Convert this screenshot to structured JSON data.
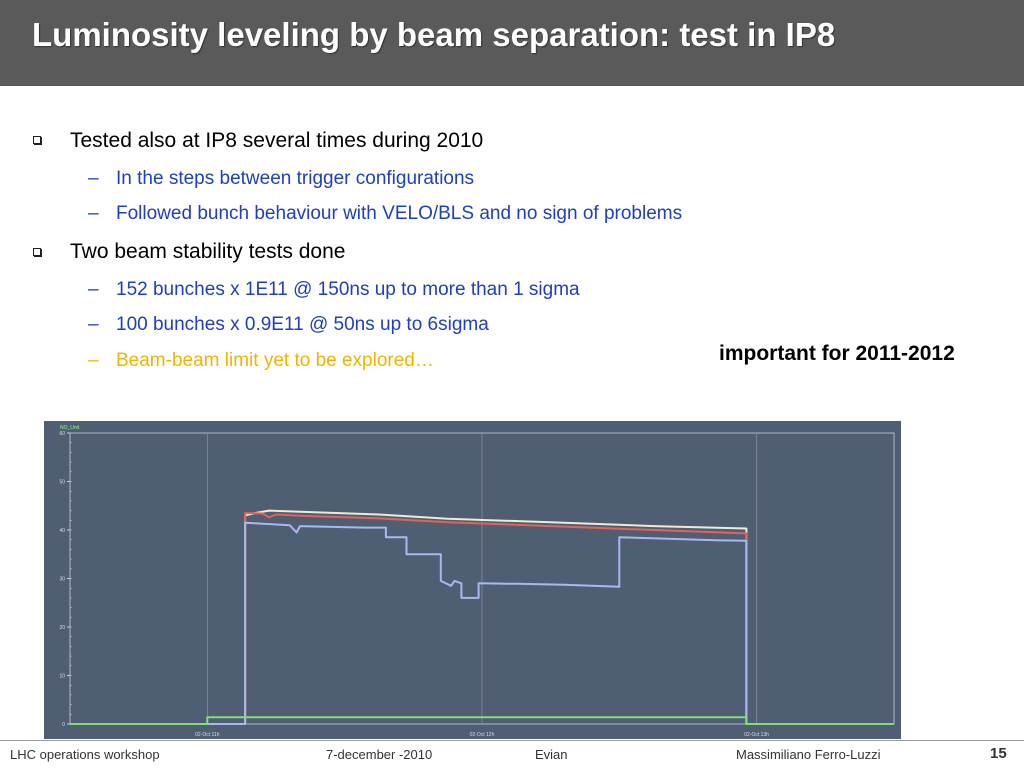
{
  "slide": {
    "title": "Luminosity leveling by beam separation: test in IP8",
    "bullets": [
      {
        "text": "Tested also at IP8 several times during 2010",
        "subs": [
          {
            "text": "In the steps between trigger configurations",
            "color": "#1f3fbf"
          },
          {
            "text": "Followed bunch behaviour with VELO/BLS and no sign of problems",
            "color": "#1f3fbf"
          }
        ]
      },
      {
        "text": "Two beam stability tests done",
        "subs": [
          {
            "text": "152 bunches x 1E11 @ 150ns up to more than 1 sigma",
            "color": "#1f3fbf"
          },
          {
            "text": "100 bunches x 0.9E11 @ 50ns up to 6sigma",
            "color": "#1f3fbf"
          },
          {
            "text": "Beam-beam limit yet to be explored…",
            "color": "#f2b400"
          }
        ]
      }
    ],
    "note": "important for 2011-2012",
    "dash": "–"
  },
  "chart_data": {
    "type": "line",
    "unit_label": "NO_Unit",
    "ylim": [
      0,
      60
    ],
    "yticks": [
      "0",
      "10",
      "20",
      "30",
      "40",
      "50",
      "60"
    ],
    "xticks": [
      "02-Oct 11h",
      "02-Oct 12h",
      "02-Oct 13h"
    ],
    "grid": true,
    "background": "#4f5e72",
    "series": [
      {
        "color": "#f0ead2",
        "points": [
          [
            0.0,
            0
          ],
          [
            0.255,
            0
          ],
          [
            0.255,
            43
          ],
          [
            0.27,
            43.5
          ],
          [
            0.29,
            44
          ],
          [
            0.33,
            43.8
          ],
          [
            0.45,
            43.2
          ],
          [
            0.55,
            42.3
          ],
          [
            0.7,
            41.6
          ],
          [
            0.85,
            40.8
          ],
          [
            0.985,
            40.3
          ],
          [
            0.985,
            0
          ],
          [
            1.2,
            0
          ]
        ]
      },
      {
        "color": "#e0645a",
        "points": [
          [
            0.0,
            0
          ],
          [
            0.255,
            0
          ],
          [
            0.255,
            43.5
          ],
          [
            0.28,
            43.4
          ],
          [
            0.29,
            42.6
          ],
          [
            0.3,
            43.2
          ],
          [
            0.34,
            42.9
          ],
          [
            0.45,
            42.4
          ],
          [
            0.55,
            41.6
          ],
          [
            0.7,
            40.8
          ],
          [
            0.85,
            40.0
          ],
          [
            0.985,
            39.3
          ],
          [
            0.985,
            0
          ],
          [
            1.2,
            0
          ]
        ]
      },
      {
        "color": "#a9b8ee",
        "points": [
          [
            0.0,
            0
          ],
          [
            0.255,
            0
          ],
          [
            0.255,
            41.5
          ],
          [
            0.32,
            41
          ],
          [
            0.33,
            39.5
          ],
          [
            0.335,
            40.8
          ],
          [
            0.43,
            40.5
          ],
          [
            0.46,
            40.5
          ],
          [
            0.46,
            38.5
          ],
          [
            0.49,
            38.5
          ],
          [
            0.49,
            35
          ],
          [
            0.54,
            35
          ],
          [
            0.54,
            29.5
          ],
          [
            0.555,
            28.5
          ],
          [
            0.56,
            29.5
          ],
          [
            0.57,
            29
          ],
          [
            0.57,
            26
          ],
          [
            0.595,
            26
          ],
          [
            0.595,
            29
          ],
          [
            0.65,
            28.9
          ],
          [
            0.72,
            28.7
          ],
          [
            0.78,
            28.4
          ],
          [
            0.8,
            28.3
          ],
          [
            0.8,
            38.5
          ],
          [
            0.87,
            38.2
          ],
          [
            0.94,
            37.9
          ],
          [
            0.985,
            37.8
          ],
          [
            0.985,
            0
          ],
          [
            1.2,
            0
          ]
        ]
      },
      {
        "color": "#7fe07a",
        "points": [
          [
            0.0,
            0
          ],
          [
            0.2,
            0
          ],
          [
            0.2,
            1.4
          ],
          [
            0.985,
            1.4
          ],
          [
            0.985,
            0
          ],
          [
            1.2,
            0
          ]
        ]
      }
    ]
  },
  "footer": {
    "workshop": "LHC operations workshop",
    "date": "7-december -2010",
    "location": "Evian",
    "author": "Massimiliano Ferro-Luzzi",
    "page": "15"
  }
}
